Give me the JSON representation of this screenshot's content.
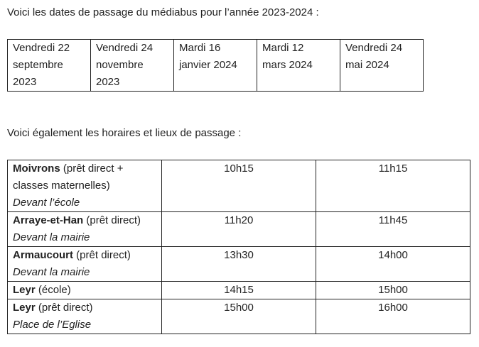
{
  "intro_dates": "Voici les dates de passage du médiabus pour l’année 2023-2024 :",
  "dates": [
    [
      "Vendredi 22",
      "septembre",
      "2023"
    ],
    [
      "Vendredi 24",
      "novembre",
      "2023"
    ],
    [
      "Mardi 16",
      "janvier 2024"
    ],
    [
      "Mardi 12",
      "mars 2024"
    ],
    [
      "Vendredi 24",
      "mai 2024"
    ]
  ],
  "intro_schedule": "Voici également les horaires et lieux de passage :",
  "schedule": [
    {
      "place": "Moivrons",
      "type": " (prêt direct + classes maternelles)",
      "location": "Devant l’école",
      "arrival": "10h15",
      "departure": "11h15"
    },
    {
      "place": "Arraye-et-Han",
      "type": " (prêt direct)",
      "location": "Devant la mairie",
      "arrival": "11h20",
      "departure": "11h45"
    },
    {
      "place": "Armaucourt",
      "type": " (prêt direct)",
      "location": "Devant la mairie",
      "arrival": "13h30",
      "departure": "14h00"
    },
    {
      "place": "Leyr",
      "type": " (école)",
      "location": "",
      "arrival": "14h15",
      "departure": "15h00"
    },
    {
      "place": "Leyr",
      "type": " (prêt direct)",
      "location": "Place de l’Eglise",
      "arrival": "15h00",
      "departure": "16h00"
    }
  ]
}
